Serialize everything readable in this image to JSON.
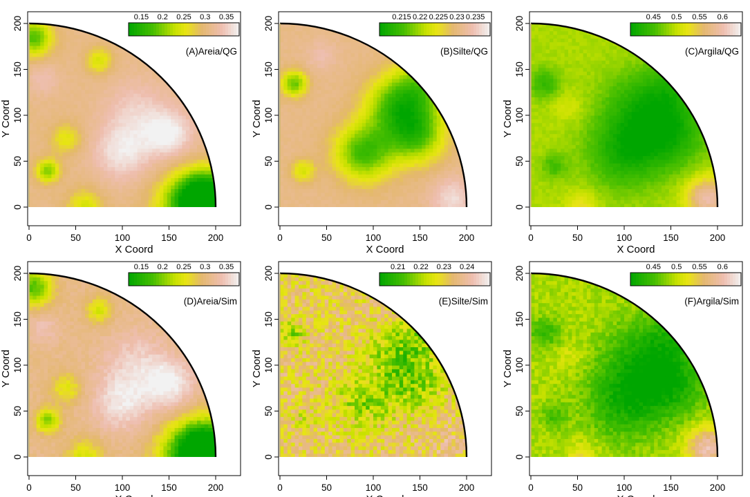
{
  "figure": {
    "rows": 2,
    "cols": 3
  },
  "chart_data": [
    {
      "type": "heatmap",
      "panel_label": "(A)Areia/QG",
      "xlabel": "X Coord",
      "ylabel": "Y Coord",
      "xlim": [
        0,
        200
      ],
      "ylim": [
        0,
        200
      ],
      "x_ticks": [
        "0",
        "50",
        "100",
        "150",
        "200"
      ],
      "y_ticks": [
        "0",
        "50",
        "100",
        "150",
        "200"
      ],
      "colorbar": {
        "range": [
          0.12,
          0.38
        ],
        "ticks": [
          "0.15",
          "0.2",
          "0.25",
          "0.3",
          "0.35"
        ],
        "tick_values": [
          0.15,
          0.2,
          0.25,
          0.3,
          0.35
        ]
      },
      "field": {
        "base": 0.31,
        "noise": 0.005,
        "seed": 11,
        "features": [
          {
            "x": 100,
            "y": 60,
            "r": 22,
            "v": 0.06
          },
          {
            "x": 150,
            "y": 80,
            "r": 18,
            "v": 0.07
          },
          {
            "x": 115,
            "y": 105,
            "r": 24,
            "v": 0.04
          },
          {
            "x": 190,
            "y": 10,
            "r": 20,
            "v": -0.22
          },
          {
            "x": 170,
            "y": 0,
            "r": 25,
            "v": -0.12
          },
          {
            "x": 60,
            "y": 0,
            "r": 14,
            "v": -0.07
          },
          {
            "x": 20,
            "y": 40,
            "r": 9,
            "v": -0.11
          },
          {
            "x": 5,
            "y": 185,
            "r": 14,
            "v": -0.13
          },
          {
            "x": 40,
            "y": 75,
            "r": 12,
            "v": -0.06
          },
          {
            "x": 75,
            "y": 160,
            "r": 10,
            "v": -0.07
          },
          {
            "x": 15,
            "y": 140,
            "r": 12,
            "v": 0.03
          }
        ]
      }
    },
    {
      "type": "heatmap",
      "panel_label": "(B)Silte/QG",
      "xlabel": "X Coord",
      "ylabel": "Y Coord",
      "xlim": [
        0,
        200
      ],
      "ylim": [
        0,
        200
      ],
      "x_ticks": [
        "0",
        "50",
        "100",
        "150",
        "200"
      ],
      "y_ticks": [
        "0",
        "50",
        "100",
        "150",
        "200"
      ],
      "colorbar": {
        "range": [
          0.209,
          0.239
        ],
        "ticks": [
          "0.215",
          "0.22",
          "0.225",
          "0.23",
          "0.235"
        ],
        "tick_values": [
          0.215,
          0.22,
          0.225,
          0.23,
          0.235
        ]
      },
      "field": {
        "base": 0.231,
        "noise": 0.0006,
        "seed": 23,
        "features": [
          {
            "x": 90,
            "y": 60,
            "r": 22,
            "v": -0.016
          },
          {
            "x": 145,
            "y": 80,
            "r": 22,
            "v": -0.016
          },
          {
            "x": 120,
            "y": 110,
            "r": 22,
            "v": -0.012
          },
          {
            "x": 150,
            "y": 130,
            "r": 22,
            "v": -0.012
          },
          {
            "x": 15,
            "y": 135,
            "r": 10,
            "v": -0.014
          },
          {
            "x": 25,
            "y": 40,
            "r": 9,
            "v": -0.008
          },
          {
            "x": 185,
            "y": 10,
            "r": 16,
            "v": 0.006
          },
          {
            "x": 45,
            "y": 165,
            "r": 12,
            "v": 0.003
          }
        ]
      }
    },
    {
      "type": "heatmap",
      "panel_label": "(C)Argila/QG",
      "xlabel": "X Coord",
      "ylabel": "Y Coord",
      "xlim": [
        0,
        200
      ],
      "ylim": [
        0,
        200
      ],
      "x_ticks": [
        "0",
        "50",
        "100",
        "150",
        "200"
      ],
      "y_ticks": [
        "0",
        "50",
        "100",
        "150",
        "200"
      ],
      "colorbar": {
        "range": [
          0.4,
          0.64
        ],
        "ticks": [
          "0.45",
          "0.5",
          "0.55",
          "0.6"
        ],
        "tick_values": [
          0.45,
          0.5,
          0.55,
          0.6
        ]
      },
      "field": {
        "base": 0.49,
        "noise": 0.006,
        "seed": 37,
        "features": [
          {
            "x": 100,
            "y": 60,
            "r": 28,
            "v": -0.07
          },
          {
            "x": 150,
            "y": 80,
            "r": 26,
            "v": -0.07
          },
          {
            "x": 115,
            "y": 110,
            "r": 28,
            "v": -0.05
          },
          {
            "x": 150,
            "y": 130,
            "r": 22,
            "v": -0.04
          },
          {
            "x": 15,
            "y": 135,
            "r": 12,
            "v": -0.05
          },
          {
            "x": 25,
            "y": 45,
            "r": 10,
            "v": -0.04
          },
          {
            "x": 190,
            "y": 10,
            "r": 16,
            "v": 0.11
          },
          {
            "x": 55,
            "y": 0,
            "r": 12,
            "v": 0.04
          },
          {
            "x": 40,
            "y": 110,
            "r": 12,
            "v": 0.02
          }
        ]
      }
    },
    {
      "type": "heatmap",
      "panel_label": "(D)Areia/Sim",
      "xlabel": "X Coord",
      "ylabel": "Y Coord",
      "xlim": [
        0,
        200
      ],
      "ylim": [
        0,
        200
      ],
      "x_ticks": [
        "0",
        "50",
        "100",
        "150",
        "200"
      ],
      "y_ticks": [
        "0",
        "50",
        "100",
        "150",
        "200"
      ],
      "colorbar": {
        "range": [
          0.12,
          0.38
        ],
        "ticks": [
          "0.15",
          "0.2",
          "0.25",
          "0.3",
          "0.35"
        ],
        "tick_values": [
          0.15,
          0.2,
          0.25,
          0.3,
          0.35
        ]
      },
      "field": {
        "base": 0.31,
        "noise": 0.009,
        "seed": 41,
        "features": [
          {
            "x": 100,
            "y": 60,
            "r": 22,
            "v": 0.06
          },
          {
            "x": 150,
            "y": 80,
            "r": 18,
            "v": 0.07
          },
          {
            "x": 115,
            "y": 105,
            "r": 24,
            "v": 0.04
          },
          {
            "x": 190,
            "y": 10,
            "r": 20,
            "v": -0.22
          },
          {
            "x": 170,
            "y": 0,
            "r": 25,
            "v": -0.12
          },
          {
            "x": 60,
            "y": 0,
            "r": 14,
            "v": -0.07
          },
          {
            "x": 20,
            "y": 40,
            "r": 9,
            "v": -0.11
          },
          {
            "x": 5,
            "y": 185,
            "r": 14,
            "v": -0.13
          },
          {
            "x": 40,
            "y": 75,
            "r": 12,
            "v": -0.06
          },
          {
            "x": 75,
            "y": 160,
            "r": 10,
            "v": -0.07
          },
          {
            "x": 15,
            "y": 140,
            "r": 12,
            "v": 0.03
          }
        ]
      }
    },
    {
      "type": "heatmap",
      "panel_label": "(E)Silte/Sim",
      "xlabel": "X Coord",
      "ylabel": "Y Coord",
      "xlim": [
        0,
        200
      ],
      "ylim": [
        0,
        200
      ],
      "x_ticks": [
        "0",
        "50",
        "100",
        "150",
        "200"
      ],
      "y_ticks": [
        "0",
        "50",
        "100",
        "150",
        "200"
      ],
      "colorbar": {
        "range": [
          0.202,
          0.25
        ],
        "ticks": [
          "0.21",
          "0.22",
          "0.23",
          "0.24"
        ],
        "tick_values": [
          0.21,
          0.22,
          0.23,
          0.24
        ]
      },
      "field": {
        "base": 0.232,
        "noise": 0.008,
        "seed": 53,
        "features": [
          {
            "x": 90,
            "y": 60,
            "r": 22,
            "v": -0.013
          },
          {
            "x": 145,
            "y": 80,
            "r": 22,
            "v": -0.013
          },
          {
            "x": 120,
            "y": 110,
            "r": 22,
            "v": -0.01
          },
          {
            "x": 150,
            "y": 130,
            "r": 22,
            "v": -0.01
          },
          {
            "x": 15,
            "y": 135,
            "r": 10,
            "v": -0.012
          },
          {
            "x": 25,
            "y": 40,
            "r": 9,
            "v": -0.007
          },
          {
            "x": 185,
            "y": 10,
            "r": 16,
            "v": 0.005
          }
        ]
      }
    },
    {
      "type": "heatmap",
      "panel_label": "(F)Argila/Sim",
      "xlabel": "X Coord",
      "ylabel": "Y Coord",
      "xlim": [
        0,
        200
      ],
      "ylim": [
        0,
        200
      ],
      "x_ticks": [
        "0",
        "50",
        "100",
        "150",
        "200"
      ],
      "y_ticks": [
        "0",
        "50",
        "100",
        "150",
        "200"
      ],
      "colorbar": {
        "range": [
          0.4,
          0.64
        ],
        "ticks": [
          "0.45",
          "0.5",
          "0.55",
          "0.6"
        ],
        "tick_values": [
          0.45,
          0.5,
          0.55,
          0.6
        ]
      },
      "field": {
        "base": 0.49,
        "noise": 0.014,
        "seed": 67,
        "features": [
          {
            "x": 100,
            "y": 60,
            "r": 28,
            "v": -0.07
          },
          {
            "x": 150,
            "y": 80,
            "r": 26,
            "v": -0.07
          },
          {
            "x": 115,
            "y": 110,
            "r": 28,
            "v": -0.05
          },
          {
            "x": 150,
            "y": 130,
            "r": 22,
            "v": -0.04
          },
          {
            "x": 15,
            "y": 135,
            "r": 12,
            "v": -0.05
          },
          {
            "x": 25,
            "y": 45,
            "r": 10,
            "v": -0.04
          },
          {
            "x": 190,
            "y": 10,
            "r": 16,
            "v": 0.11
          },
          {
            "x": 55,
            "y": 0,
            "r": 12,
            "v": 0.04
          },
          {
            "x": 40,
            "y": 110,
            "r": 12,
            "v": 0.02
          }
        ]
      }
    }
  ]
}
